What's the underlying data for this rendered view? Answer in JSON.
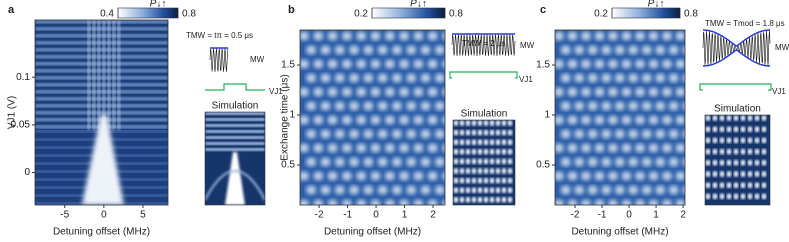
{
  "chart_data": [
    {
      "type": "heatmap",
      "panel_label": "a",
      "x_label": "Detuning offset (MHz)",
      "y_label": "VJ1 (V)",
      "xlim": [
        -8.8,
        8.2
      ],
      "xticks": [
        -5,
        0,
        5
      ],
      "ylim": [
        -0.034,
        0.16
      ],
      "yticks": [
        0,
        0.05,
        0.1
      ],
      "colorbar": {
        "label": "P↓↑",
        "lim": [
          0.4,
          0.8
        ],
        "ticks": [
          0.4,
          0.8
        ]
      },
      "pulse_label": "TMW = tπ = 0.5 μs",
      "mw_label": "MW",
      "vj_label": "VJ1",
      "simulation_label": "Simulation"
    },
    {
      "type": "heatmap",
      "panel_label": "b",
      "x_label": "Detuning offset (MHz)",
      "y_label": "Exchange time (μs)",
      "xlim": [
        -2.67,
        2.42
      ],
      "xticks": [
        -2,
        -1,
        0,
        1,
        2
      ],
      "ylim": [
        0.1,
        1.85
      ],
      "yticks": [
        0.5,
        1,
        1.5
      ],
      "colorbar": {
        "label": "P↓↑",
        "lim": [
          0.2,
          0.8
        ],
        "ticks": [
          0.2,
          0.8
        ]
      },
      "pulse_label": "TMW = 2 μs",
      "mw_label": "MW",
      "vj_label": "VJ1",
      "simulation_label": "Simulation"
    },
    {
      "type": "heatmap",
      "panel_label": "c",
      "x_label": "Detuning offset (MHz)",
      "xlim": [
        -2.74,
        2.07
      ],
      "xticks": [
        -2,
        -1,
        0,
        1,
        2
      ],
      "ylim": [
        0.1,
        1.85
      ],
      "yticks": [
        0.5,
        1,
        1.5
      ],
      "colorbar": {
        "label": "P↓↑",
        "lim": [
          0.2,
          0.8
        ],
        "ticks": [
          0.2,
          0.8
        ]
      },
      "pulse_label": "TMW = Tmod = 1.8 μs",
      "mw_label": "MW",
      "vj_label": "VJ1",
      "simulation_label": "Simulation"
    }
  ]
}
